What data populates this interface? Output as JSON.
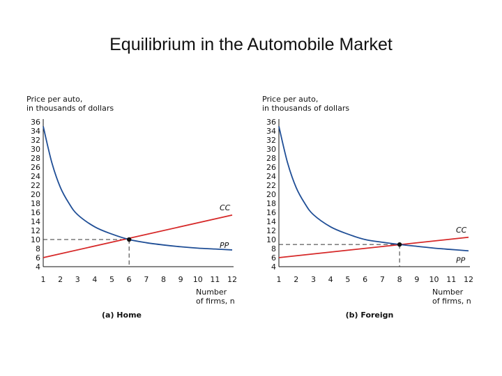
{
  "page": {
    "title": "Equilibrium in the Automobile Market"
  },
  "colors": {
    "cc": "#d62828",
    "pp": "#1f4e96",
    "axis": "#111111",
    "dashed": "#333333"
  },
  "chart_data": [
    {
      "type": "line",
      "caption": "(a) Home",
      "ylabel_line1": "Price per auto,",
      "ylabel_line2": "in thousands of dollars",
      "xlabel_line1": "Number",
      "xlabel_line2": "of firms, n",
      "xlim": [
        1,
        12
      ],
      "ylim": [
        4,
        36
      ],
      "x_ticks": [
        1,
        2,
        3,
        4,
        5,
        6,
        7,
        8,
        9,
        10,
        11,
        12
      ],
      "y_ticks": [
        36,
        34,
        32,
        30,
        28,
        26,
        24,
        22,
        20,
        18,
        16,
        14,
        12,
        10,
        8,
        6,
        4
      ],
      "series": [
        {
          "name": "CC",
          "kind": "linear",
          "x": [
            1,
            12
          ],
          "y": [
            6,
            15.4
          ]
        },
        {
          "name": "PP",
          "kind": "curve",
          "x": [
            1,
            1.5,
            2,
            2.5,
            3,
            4,
            5,
            6,
            7,
            8,
            9,
            10,
            11,
            12
          ],
          "y": [
            35,
            27,
            21.5,
            18,
            15.5,
            12.8,
            11.2,
            10,
            9.3,
            8.8,
            8.4,
            8.1,
            7.9,
            7.7
          ]
        }
      ],
      "equilibrium": {
        "x": 6,
        "y": 10
      }
    },
    {
      "type": "line",
      "caption": "(b) Foreign",
      "ylabel_line1": "Price per auto,",
      "ylabel_line2": "in thousands of dollars",
      "xlabel_line1": "Number",
      "xlabel_line2": "of firms, n",
      "xlim": [
        1,
        12
      ],
      "ylim": [
        4,
        36
      ],
      "x_ticks": [
        1,
        2,
        3,
        4,
        5,
        6,
        7,
        8,
        9,
        10,
        11,
        12
      ],
      "y_ticks": [
        36,
        34,
        32,
        30,
        28,
        26,
        24,
        22,
        20,
        18,
        16,
        14,
        12,
        10,
        8,
        6,
        4
      ],
      "series": [
        {
          "name": "CC",
          "kind": "linear",
          "x": [
            1,
            12
          ],
          "y": [
            6,
            10.5
          ]
        },
        {
          "name": "PP",
          "kind": "curve",
          "x": [
            1,
            1.5,
            2,
            2.5,
            3,
            4,
            5,
            6,
            7,
            8,
            9,
            10,
            11,
            12
          ],
          "y": [
            35,
            27,
            21.5,
            18,
            15.5,
            12.8,
            11.2,
            10,
            9.4,
            8.9,
            8.5,
            8.1,
            7.8,
            7.5
          ]
        }
      ],
      "equilibrium": {
        "x": 8,
        "y": 8.9
      }
    }
  ]
}
